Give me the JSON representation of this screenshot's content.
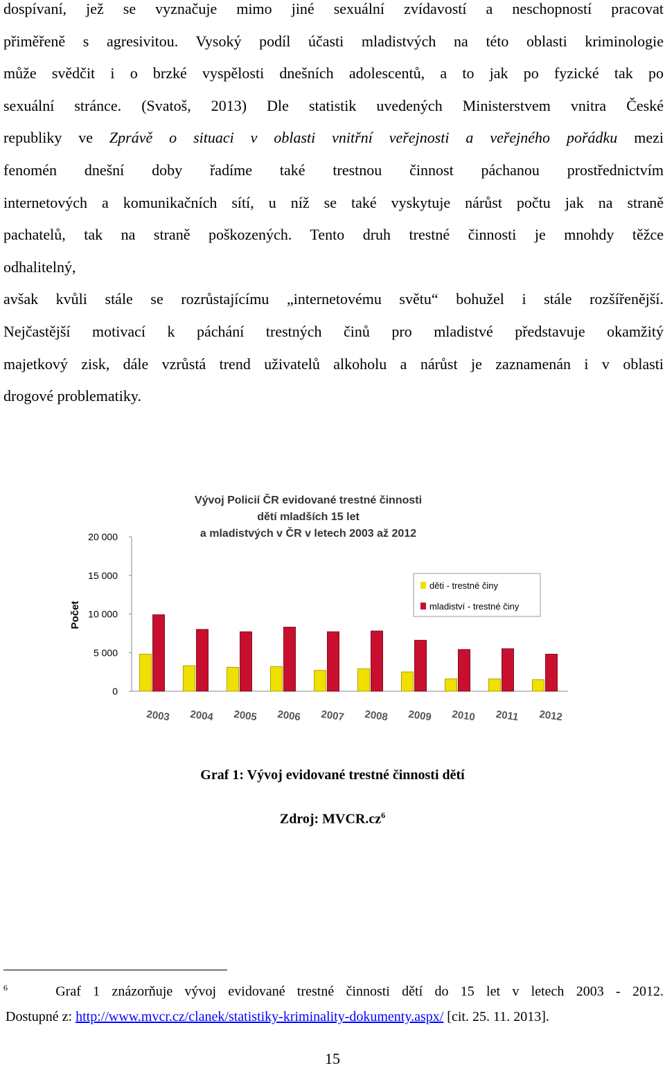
{
  "body": {
    "lines": [
      [
        "dospívaní, jež se vyznačuje mimo jiné sexuální zvídavostí a neschopností pracovat"
      ],
      [
        "přiměřeně s agresivitou. Vysoký podíl účasti mladistvých na této oblasti kriminologie"
      ],
      [
        "může svědčit i o brzké vyspělosti dnešních adolescentů, a to jak po fyzické tak po"
      ],
      [
        "sexuální stránce. (Svatoš, 2013) Dle statistik uvedených Ministerstvem vnitra České"
      ],
      [
        "republiky ve ",
        "Zprávě o situaci v oblasti vnitřní veřejnosti a veřejného pořádku",
        " mezi"
      ],
      [
        "fenomén dnešní doby řadíme také trestnou činnost páchanou prostřednictvím"
      ],
      [
        "internetových a komunikačních sítí, u níž se také vyskytuje nárůst počtu jak na straně"
      ],
      [
        "pachatelů, tak na straně poškozených. Tento druh trestné činnosti je mnohdy těžce"
      ],
      [
        "odhalitelný,"
      ],
      [
        "avšak kvůli stále se rozrůstajícímu „internetovému světu“ bohužel i stále rozšířenější."
      ],
      [
        "Nejčastější motivací k páchání trestných činů pro mladistvé představuje okamžitý"
      ],
      [
        "majetkový zisk, dále vzrůstá trend uživatelů alkoholu a nárůst je zaznamenán i v oblasti"
      ],
      [
        "drogové problematiky."
      ]
    ]
  },
  "chart_data": {
    "type": "bar",
    "title": [
      "Vývoj Policií ČR evidované trestné činnosti",
      "dětí mladších 15 let",
      "a mladistvých v ČR v letech 2003 až 2012"
    ],
    "y_label": "Počet",
    "categories": [
      "2003",
      "2004",
      "2005",
      "2006",
      "2007",
      "2008",
      "2009",
      "2010",
      "2011",
      "2012"
    ],
    "series": [
      {
        "name": "děti - trestné činy",
        "color": "#f0e000",
        "values": [
          4800,
          3300,
          3100,
          3200,
          2700,
          2900,
          2500,
          1600,
          1600,
          1500
        ]
      },
      {
        "name": "mladiství - trestné činy",
        "color": "#c8102e",
        "values": [
          9900,
          8000,
          7700,
          8300,
          7700,
          7800,
          6600,
          5400,
          5500,
          4800
        ]
      }
    ],
    "ylim": [
      0,
      20000
    ],
    "yticks": [
      0,
      {
        "value": 5000,
        "label": "5 000"
      },
      {
        "value": 10000,
        "label": "10 000"
      },
      {
        "value": 15000,
        "label": "15 000"
      },
      {
        "value": 20000,
        "label": "20 000"
      }
    ],
    "grid": false,
    "legend": "upper right"
  },
  "caption": {
    "title": "Graf 1: Vývoj evidované trestné činnosti dětí",
    "source": "Zdroj: MVCR.cz",
    "ref": "6"
  },
  "footnote": {
    "marker": "6",
    "text": "Graf 1 znázorňuje vývoj evidované trestné činnosti dětí do 15 let v letech 2003 - 2012.",
    "prefix": "Dostupné z: ",
    "link": "http://www.mvcr.cz/clanek/statistiky-kriminality-dokumenty.aspx/",
    "suffix": " [cit. 25. 11. 2013]."
  },
  "page_number": "15"
}
